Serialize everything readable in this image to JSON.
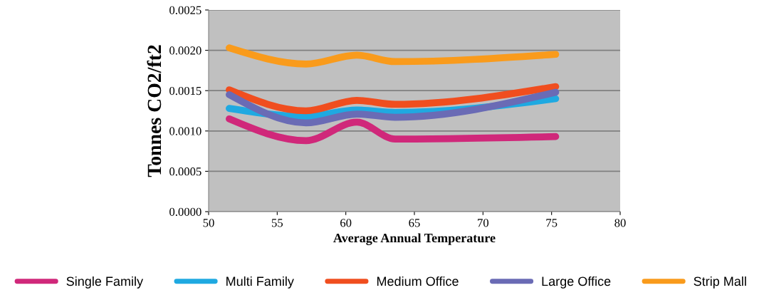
{
  "chart_data": {
    "type": "line",
    "xlabel": "Average Annual Temperature",
    "ylabel": "Tonnes CO2/ft2",
    "x": [
      51.5,
      57.1,
      60.8,
      63.6,
      75.3
    ],
    "series": [
      {
        "name": "Single Family",
        "color": "#d0287a",
        "values": [
          0.00115,
          0.00088,
          0.00111,
          0.0009,
          0.00093
        ]
      },
      {
        "name": "Multi Family",
        "color": "#1fa9e1",
        "values": [
          0.00128,
          0.00118,
          0.00126,
          0.00123,
          0.0014
        ]
      },
      {
        "name": "Medium Office",
        "color": "#f04e1f",
        "values": [
          0.00151,
          0.00125,
          0.00138,
          0.00133,
          0.00155
        ]
      },
      {
        "name": "Large Office",
        "color": "#6a6bb5",
        "values": [
          0.00145,
          0.0011,
          0.00121,
          0.00117,
          0.00148
        ]
      },
      {
        "name": "Strip Mall",
        "color": "#f99b1c",
        "values": [
          0.00203,
          0.00183,
          0.00194,
          0.00186,
          0.00195
        ]
      }
    ],
    "xlim": [
      50,
      80
    ],
    "xticks": [
      50,
      55,
      60,
      65,
      70,
      75,
      80
    ],
    "ylim": [
      0,
      0.0025
    ],
    "yticks": [
      {
        "value": 0,
        "label": "0.0000"
      },
      {
        "value": 0.0005,
        "label": "0.0005"
      },
      {
        "value": 0.001,
        "label": "0.0010"
      },
      {
        "value": 0.0015,
        "label": "0.0015"
      },
      {
        "value": 0.002,
        "label": "0.0020"
      },
      {
        "value": 0.0025,
        "label": "0.0025"
      }
    ],
    "grid": "y",
    "legend": "bottom",
    "marker": "none",
    "line_style": "solid"
  }
}
